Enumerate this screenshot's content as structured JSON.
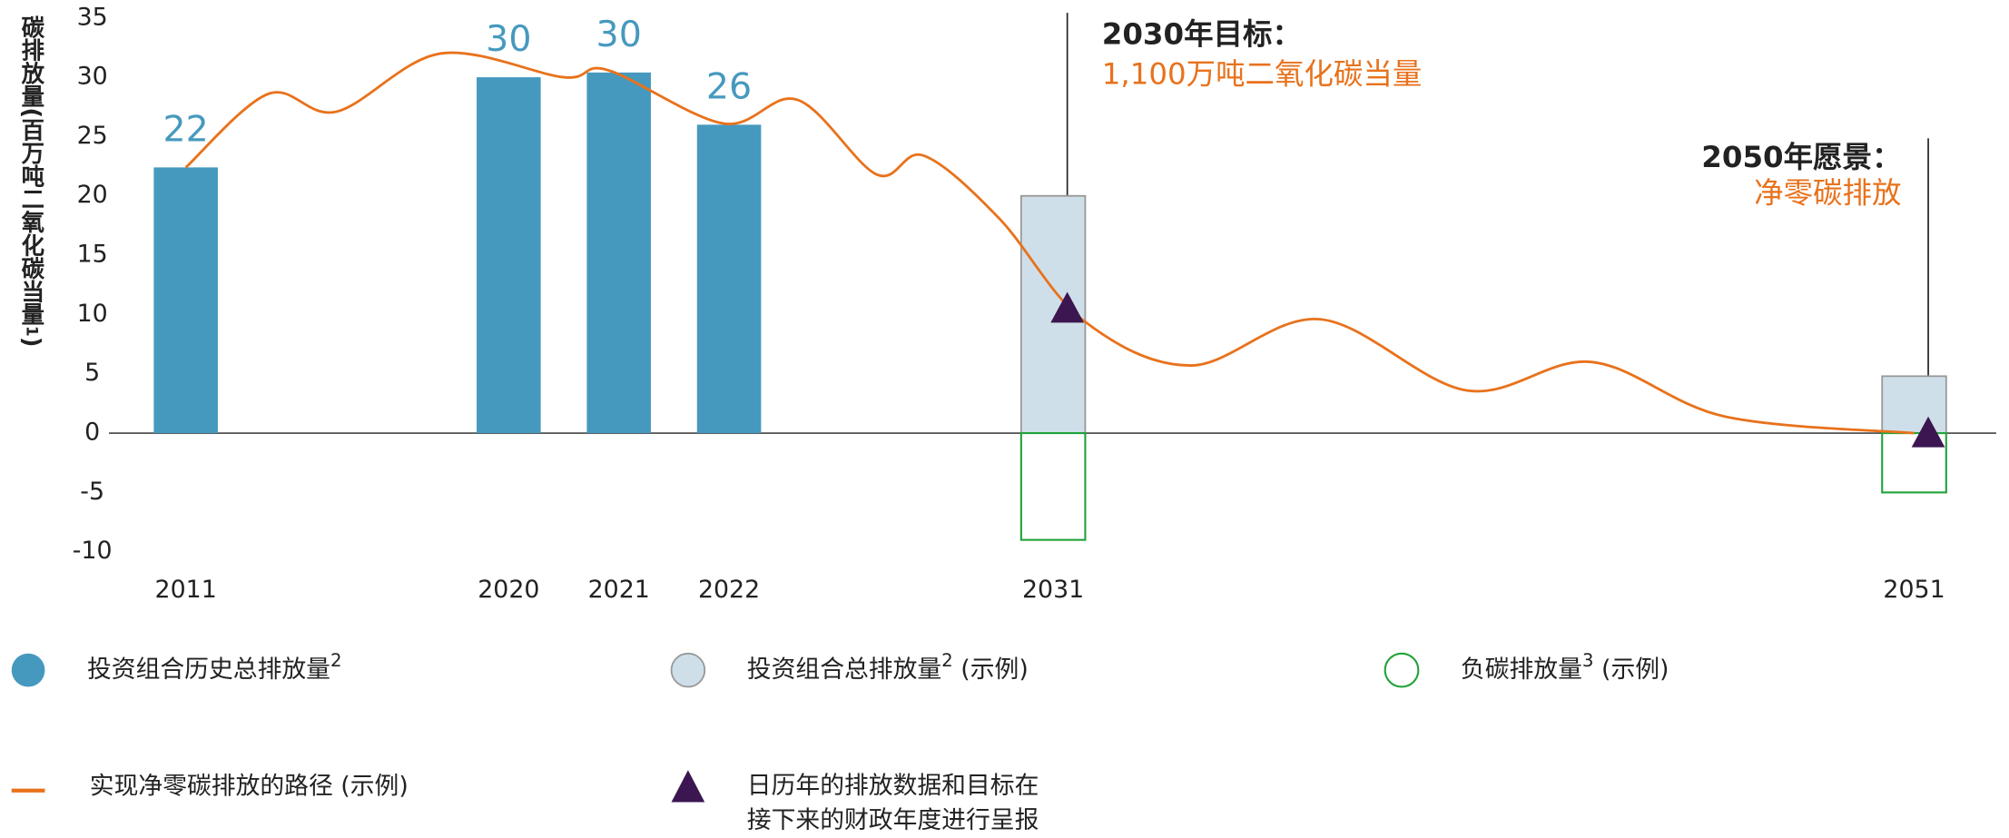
{
  "chart_data": {
    "type": "bar",
    "y_label": "碳排放量(百万吨二氧化碳当量",
    "y_label_sup": "1",
    "y_label_end": ")",
    "ylim": [
      -10,
      35
    ],
    "yticks": [
      35,
      30,
      25,
      20,
      15,
      10,
      5,
      0,
      -5,
      -10
    ],
    "categories": [
      "2011",
      "2020",
      "2021",
      "2022",
      "2031",
      "2051"
    ],
    "series": [
      {
        "type": "bar",
        "name": "投资组合历史总排放量",
        "name_sup": "2",
        "color": "#4699be",
        "values": [
          22.4,
          30,
          30.4,
          26,
          null,
          null
        ],
        "value_labels": [
          "22",
          "30",
          "30",
          "26",
          null,
          null
        ]
      },
      {
        "type": "bar",
        "name": "投资组合总排放量",
        "name_sup": "2",
        "name_suffix": " (示例)",
        "color": "#cfdfe9",
        "values": [
          null,
          null,
          null,
          null,
          20,
          4.8
        ]
      },
      {
        "type": "bar",
        "name": "负碳排放量",
        "name_sup": "3",
        "name_suffix": " (示例)",
        "color": "#22a33a",
        "values": [
          null,
          null,
          null,
          null,
          -9,
          -5
        ]
      },
      {
        "type": "line",
        "name": "实现净零碳排放的路径 (示例)",
        "color": "#e8721c",
        "x": [
          2011,
          2013.3,
          2015.2,
          2018.1,
          2020.5,
          2020.9,
          2021.95,
          2023.9,
          2026.1,
          2027.4,
          2029.5,
          2031.7,
          2034.2,
          2037.2,
          2040.6,
          2043.5,
          2046.6,
          2051
        ],
        "values": [
          22.4,
          28.6,
          27.1,
          32,
          30,
          30.6,
          26.1,
          28.1,
          21.8,
          23.4,
          18.1,
          9.5,
          5.7,
          9.6,
          3.6,
          6,
          1.4,
          0
        ]
      },
      {
        "type": "scatter",
        "name": [
          "日历年的排放数据和目标在",
          "接下来的财政年度进行呈报"
        ],
        "color": "#3b1650",
        "values": [
          null,
          null,
          null,
          null,
          10.5,
          0
        ]
      }
    ],
    "annotations": [
      {
        "title": "2030年目标：",
        "text": "1,100万吨二氧化碳当量"
      },
      {
        "title": "2050年愿景：",
        "text": "净零碳排放"
      }
    ]
  }
}
